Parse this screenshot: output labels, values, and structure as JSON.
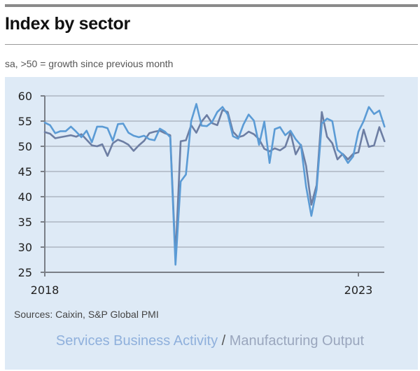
{
  "header": {
    "title": "Index by sector",
    "subtitle": "sa, >50 = growth since previous month"
  },
  "footer": {
    "sources": "Sources: Caixin, S&P Global PMI"
  },
  "legend": {
    "services_label": "Services Business Activity",
    "separator": " / ",
    "manufacturing_label": "Manufacturing Output"
  },
  "colors": {
    "panel_bg": "#deeaf6",
    "services": "#5b9bd5",
    "manufacturing": "#6d7ea3",
    "grid": "#b9c3cf",
    "axis": "#7a7f87"
  },
  "chart_data": {
    "type": "line",
    "title": "Index by sector",
    "subtitle": "sa, >50 = growth since previous month",
    "xlabel": "",
    "ylabel": "",
    "x_start": "2018-01",
    "x_frequency": "monthly",
    "x_tick_labels": [
      {
        "label": "2018",
        "index": 0
      },
      {
        "label": "2023",
        "index": 60
      }
    ],
    "ylim": [
      25,
      60
    ],
    "y_ticks": [
      25,
      30,
      35,
      40,
      45,
      50,
      55,
      60
    ],
    "grid": true,
    "legend_position": "bottom-center",
    "series": [
      {
        "name": "Services Business Activity",
        "values": [
          54.7,
          54.2,
          52.6,
          53.0,
          53.0,
          53.9,
          52.9,
          51.8,
          53.1,
          50.8,
          53.9,
          53.9,
          53.6,
          51.1,
          54.4,
          54.5,
          52.7,
          52.1,
          51.8,
          52.1,
          51.4,
          51.2,
          53.5,
          52.9,
          51.8,
          26.5,
          43.0,
          44.4,
          55.0,
          58.4,
          54.1,
          54.0,
          54.8,
          56.8,
          57.8,
          56.3,
          52.0,
          51.5,
          54.3,
          56.3,
          55.1,
          50.3,
          54.9,
          46.7,
          53.4,
          53.8,
          52.2,
          53.1,
          51.4,
          50.2,
          42.0,
          36.2,
          41.4,
          54.5,
          55.5,
          55.0,
          49.3,
          48.4,
          46.7,
          48.0,
          52.9,
          55.0,
          57.8,
          56.4,
          57.1,
          53.9
        ]
      },
      {
        "name": "Manufacturing Output",
        "values": [
          52.8,
          52.5,
          51.6,
          51.8,
          52.0,
          52.2,
          51.9,
          52.4,
          51.3,
          50.2,
          50.0,
          50.4,
          48.1,
          50.6,
          51.3,
          50.9,
          50.3,
          49.1,
          50.2,
          51.1,
          52.6,
          52.9,
          53.1,
          52.6,
          52.2,
          28.0,
          51.0,
          51.2,
          54.2,
          52.7,
          54.9,
          56.2,
          54.6,
          54.2,
          57.2,
          56.8,
          52.9,
          51.8,
          52.1,
          52.9,
          52.4,
          51.4,
          49.5,
          49.0,
          49.6,
          49.2,
          49.9,
          52.8,
          48.4,
          50.3,
          46.1,
          38.4,
          42.3,
          56.8,
          51.9,
          50.6,
          47.4,
          48.5,
          47.4,
          48.5,
          48.8,
          53.3,
          49.9,
          50.2,
          53.8,
          51.0
        ]
      }
    ]
  }
}
